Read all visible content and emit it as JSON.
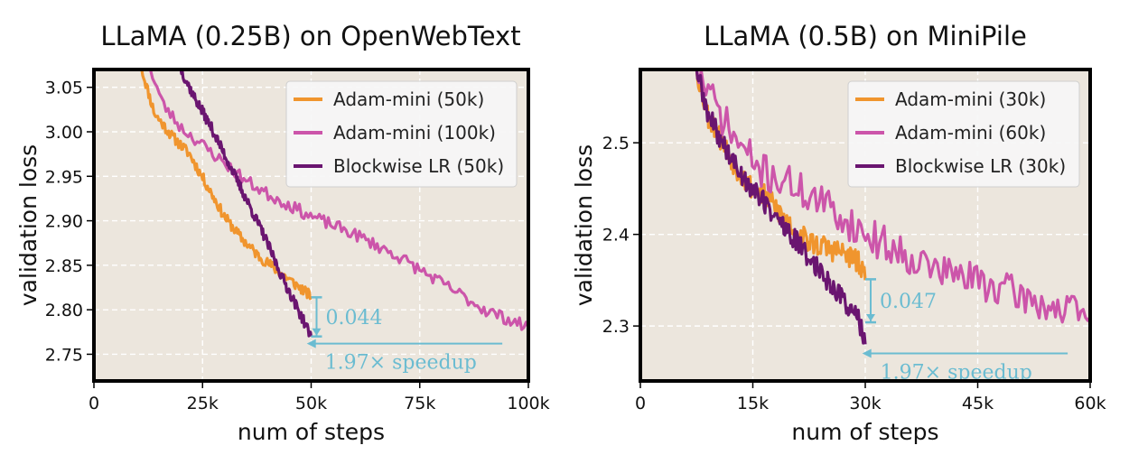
{
  "chart_data": [
    {
      "type": "line",
      "title": "LLaMA (0.25B) on OpenWebText",
      "xlabel": "num of steps",
      "ylabel": "validation loss",
      "xlim": [
        0,
        100000
      ],
      "ylim": [
        2.72,
        3.07
      ],
      "xticks": [
        0,
        25000,
        50000,
        75000,
        100000
      ],
      "xtick_labels": [
        "0",
        "25k",
        "50k",
        "75k",
        "100k"
      ],
      "yticks": [
        2.75,
        2.8,
        2.85,
        2.9,
        2.95,
        3.0,
        3.05
      ],
      "ytick_labels": [
        "2.75",
        "2.80",
        "2.85",
        "2.90",
        "2.95",
        "3.00",
        "3.05"
      ],
      "grid": true,
      "legend_position": "top-right",
      "series": [
        {
          "name": "Adam-mini (50k)",
          "color": "#f0952e",
          "noise": 0.006,
          "seed": 11,
          "x": [
            11000,
            14000,
            18000,
            22000,
            26000,
            30000,
            34000,
            38000,
            42000,
            46000,
            50000
          ],
          "y": [
            3.07,
            3.02,
            2.995,
            2.975,
            2.94,
            2.905,
            2.88,
            2.86,
            2.845,
            2.83,
            2.815
          ]
        },
        {
          "name": "Adam-mini (100k)",
          "color": "#cc55aa",
          "noise": 0.007,
          "seed": 23,
          "x": [
            13000,
            16000,
            20000,
            25000,
            30000,
            35000,
            40000,
            50000,
            60000,
            70000,
            80000,
            90000,
            100000
          ],
          "y": [
            3.07,
            3.03,
            3.005,
            2.985,
            2.965,
            2.945,
            2.93,
            2.905,
            2.885,
            2.86,
            2.83,
            2.8,
            2.78
          ]
        },
        {
          "name": "Blockwise LR (50k)",
          "color": "#6a1570",
          "noise": 0.006,
          "seed": 37,
          "x": [
            20000,
            23000,
            27000,
            31000,
            35000,
            39000,
            43000,
            47000,
            50000
          ],
          "y": [
            3.07,
            3.04,
            3.005,
            2.965,
            2.925,
            2.885,
            2.84,
            2.8,
            2.77
          ]
        }
      ],
      "annotations": [
        {
          "text": "0.044",
          "kind": "bracket",
          "x": 50000,
          "y_from": 2.814,
          "y_to": 2.77
        },
        {
          "text": "1.97× speedup",
          "kind": "arrow",
          "x_from": 94000,
          "x_to": 49000,
          "y": 2.762
        }
      ]
    },
    {
      "type": "line",
      "title": "LLaMA (0.5B) on MiniPile",
      "xlabel": "num of steps",
      "ylabel": "validation loss",
      "xlim": [
        0,
        60000
      ],
      "ylim": [
        2.24,
        2.58
      ],
      "xticks": [
        0,
        15000,
        30000,
        45000,
        60000
      ],
      "xtick_labels": [
        "0",
        "15k",
        "30k",
        "45k",
        "60k"
      ],
      "yticks": [
        2.3,
        2.4,
        2.5
      ],
      "ytick_labels": [
        "2.3",
        "2.4",
        "2.5"
      ],
      "grid": true,
      "legend_position": "top-right",
      "series": [
        {
          "name": "Adam-mini (30k)",
          "color": "#f0952e",
          "noise": 0.013,
          "seed": 53,
          "x": [
            7500,
            9000,
            11000,
            13000,
            15000,
            17000,
            19000,
            21000,
            23000,
            25000,
            27000,
            29000,
            30000
          ],
          "y": [
            2.58,
            2.53,
            2.5,
            2.47,
            2.45,
            2.44,
            2.42,
            2.4,
            2.39,
            2.385,
            2.38,
            2.37,
            2.35
          ]
        },
        {
          "name": "Adam-mini (60k)",
          "color": "#cc55aa",
          "noise": 0.02,
          "seed": 71,
          "x": [
            7500,
            10000,
            13000,
            16000,
            20000,
            25000,
            30000,
            35000,
            40000,
            45000,
            50000,
            55000,
            60000
          ],
          "y": [
            2.58,
            2.54,
            2.5,
            2.47,
            2.455,
            2.43,
            2.4,
            2.38,
            2.36,
            2.35,
            2.335,
            2.32,
            2.31
          ]
        },
        {
          "name": "Blockwise LR (30k)",
          "color": "#6a1570",
          "noise": 0.012,
          "seed": 89,
          "x": [
            7500,
            9000,
            11000,
            13000,
            15000,
            17000,
            19000,
            21000,
            23000,
            25000,
            27000,
            29000,
            30000
          ],
          "y": [
            2.58,
            2.53,
            2.5,
            2.47,
            2.45,
            2.43,
            2.41,
            2.39,
            2.37,
            2.35,
            2.33,
            2.31,
            2.28
          ]
        }
      ],
      "annotations": [
        {
          "text": "0.047",
          "kind": "bracket",
          "x": 30000,
          "y_from": 2.351,
          "y_to": 2.304
        },
        {
          "text": "1.97× speedup",
          "kind": "arrow",
          "x_from": 57000,
          "x_to": 29600,
          "y": 2.27
        }
      ]
    }
  ],
  "colors": {
    "plot_background": "#ece6dd",
    "grid": "#ffffff",
    "annotation": "#6bbcd1",
    "frame": "#000000"
  }
}
